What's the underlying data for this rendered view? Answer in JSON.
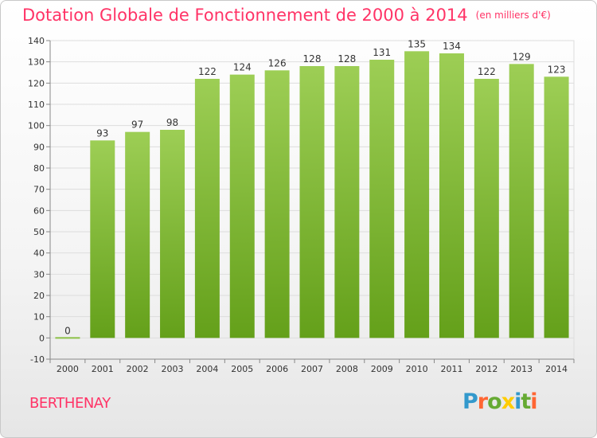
{
  "title": "Dotation Globale de Fonctionnement de 2000 à 2014",
  "subtitle": "(en milliers d'€)",
  "commune": "BERTHENAY",
  "logo": {
    "letters": [
      "P",
      "r",
      "o",
      "x",
      "i",
      "t",
      "i"
    ],
    "colors": [
      "#3399cc",
      "#ff6633",
      "#66aa33",
      "#ffcc00",
      "#3399cc",
      "#66aa33",
      "#ff6633"
    ]
  },
  "chart_data": {
    "type": "bar",
    "title": "Dotation Globale de Fonctionnement de 2000 à 2014",
    "subtitle": "(en milliers d'€)",
    "categories": [
      "2000",
      "2001",
      "2002",
      "2003",
      "2004",
      "2005",
      "2006",
      "2007",
      "2008",
      "2009",
      "2010",
      "2011",
      "2012",
      "2013",
      "2014"
    ],
    "values": [
      0,
      93,
      97,
      98,
      122,
      124,
      126,
      128,
      128,
      131,
      135,
      134,
      122,
      129,
      123
    ],
    "ylim": [
      -10,
      140
    ],
    "yticks": [
      -10,
      0,
      10,
      20,
      30,
      40,
      50,
      60,
      70,
      80,
      90,
      100,
      110,
      120,
      130,
      140
    ],
    "grid": true,
    "bar_color_top": "#99cc55",
    "bar_color_bottom": "#66a01e"
  }
}
